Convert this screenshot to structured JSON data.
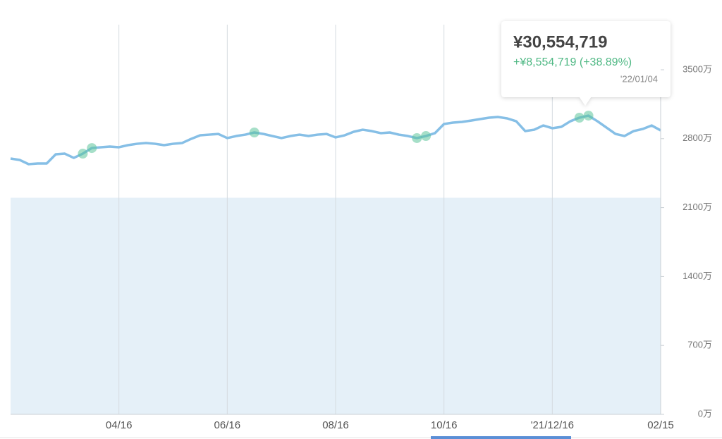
{
  "chart_data": {
    "type": "line",
    "categories": [
      null,
      null,
      null,
      null,
      null,
      null,
      null,
      null,
      null,
      null,
      null,
      null,
      "04/16",
      null,
      null,
      null,
      null,
      null,
      null,
      null,
      null,
      null,
      null,
      null,
      "06/16",
      null,
      null,
      null,
      null,
      null,
      null,
      null,
      null,
      null,
      null,
      null,
      "08/16",
      null,
      null,
      null,
      null,
      null,
      null,
      null,
      null,
      null,
      null,
      null,
      "10/16",
      null,
      null,
      null,
      null,
      null,
      null,
      null,
      null,
      null,
      null,
      null,
      "'21/12/16",
      null,
      null,
      null,
      null,
      null,
      null,
      null,
      null,
      null,
      null,
      null,
      "02/15"
    ],
    "values": [
      2598,
      2584,
      2541,
      2548,
      2548,
      2641,
      2648,
      2605,
      2648,
      2705,
      2713,
      2720,
      2713,
      2734,
      2748,
      2756,
      2748,
      2734,
      2748,
      2756,
      2798,
      2834,
      2841,
      2848,
      2806,
      2827,
      2841,
      2863,
      2848,
      2827,
      2806,
      2827,
      2841,
      2827,
      2841,
      2848,
      2813,
      2834,
      2870,
      2891,
      2877,
      2856,
      2863,
      2841,
      2827,
      2806,
      2827,
      2856,
      2949,
      2963,
      2970,
      2984,
      2999,
      3013,
      3020,
      3006,
      2977,
      2877,
      2891,
      2934,
      2906,
      2920,
      2977,
      3013,
      3034,
      2977,
      2913,
      2848,
      2827,
      2877,
      2898,
      2934,
      2884
    ],
    "color": "#86bfe6",
    "principal": 2200,
    "principal_color": "#e5f0f8",
    "marker_indices": [
      8,
      9,
      27,
      45,
      46,
      63,
      64
    ],
    "marker_color": "#5cc59a",
    "ylim": [
      0,
      3958
    ],
    "yticks": [
      {
        "value": 0,
        "label": "0万"
      },
      {
        "value": 700,
        "label": "700万"
      },
      {
        "value": 1400,
        "label": "1400万"
      },
      {
        "value": 2100,
        "label": "2100万"
      },
      {
        "value": 2800,
        "label": "2800万"
      },
      {
        "value": 3500,
        "label": "3500万"
      }
    ],
    "tooltip": {
      "value": "¥30,554,719",
      "change": "+¥8,554,719 (+38.89%)",
      "date": "'22/01/04"
    }
  }
}
